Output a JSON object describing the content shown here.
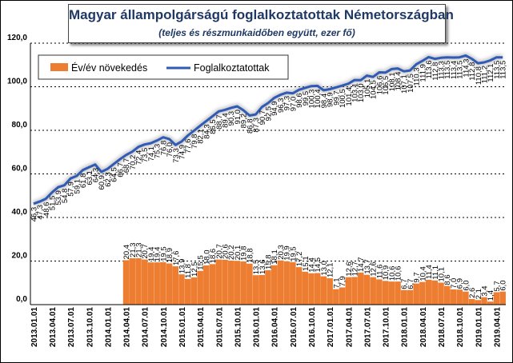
{
  "chart_data": {
    "type": "bar",
    "title": "Magyar állampolgárságú foglalkoztatottak Németországban",
    "subtitle": "(teljes és részmunkaidőben együtt, ezer fő)",
    "ylim": [
      0,
      120
    ],
    "yticks": [
      "0,0",
      "20,0",
      "40,0",
      "60,0",
      "80,0",
      "100,0",
      "120,0"
    ],
    "legend_position": "top-left",
    "colors": {
      "bar": "#ed7d31",
      "line": "#2f5bb7"
    },
    "categories": [
      "2013.01",
      "2013.02",
      "2013.03",
      "2013.04",
      "2013.05",
      "2013.06",
      "2013.07",
      "2013.08",
      "2013.09",
      "2013.10",
      "2013.11",
      "2013.12",
      "2014.01",
      "2014.02",
      "2014.03",
      "2014.04",
      "2014.05",
      "2014.06",
      "2014.07",
      "2014.08",
      "2014.09",
      "2014.10",
      "2014.11",
      "2014.12",
      "2015.01",
      "2015.02",
      "2015.03",
      "2015.04",
      "2015.05",
      "2015.06",
      "2015.07",
      "2015.08",
      "2015.09",
      "2015.10",
      "2015.11",
      "2015.12",
      "2016.01",
      "2016.02",
      "2016.03",
      "2016.04",
      "2016.05",
      "2016.06",
      "2016.07",
      "2016.08",
      "2016.09",
      "2016.10",
      "2016.11",
      "2016.12",
      "2017.01",
      "2017.02",
      "2017.03",
      "2017.04",
      "2017.05",
      "2017.06",
      "2017.07",
      "2017.08",
      "2017.09",
      "2017.10",
      "2017.11",
      "2017.12",
      "2018.01",
      "2018.02",
      "2018.03",
      "2018.04",
      "2018.05",
      "2018.06",
      "2018.07",
      "2018.08",
      "2018.09",
      "2018.10",
      "2018.11",
      "2018.12",
      "2019.01",
      "2019.02",
      "2019.03",
      "2019.04",
      "2019.05"
    ],
    "xtick_labels": [
      "2013.01.01",
      "2013.04.01",
      "2013.07.01",
      "2013.10.01",
      "2014.01.01",
      "2014.04.01",
      "2014.07.01",
      "2014.10.01",
      "2015.01.01",
      "2015.04.01",
      "2015.07.01",
      "2015.10.01",
      "2016.01.01",
      "2016.04.01",
      "2016.07.01",
      "2016.10.01",
      "2017.01.01",
      "2017.04.01",
      "2017.07.01",
      "2017.10.01",
      "2018.01.01",
      "2018.04.01",
      "2018.07.01",
      "2018.10.01",
      "2019.01.01",
      "2019.04.01"
    ],
    "series": [
      {
        "name": "Év/év növekedés",
        "type": "bar",
        "values": [
          null,
          null,
          null,
          null,
          null,
          null,
          null,
          null,
          null,
          null,
          null,
          null,
          null,
          null,
          null,
          20.4,
          21.3,
          21.3,
          20.7,
          19.4,
          19.4,
          19.5,
          18.9,
          17.6,
          13.9,
          11.8,
          12.5,
          15.5,
          18.0,
          18.6,
          20.7,
          20.6,
          20.2,
          20.1,
          19.8,
          18.8,
          13.5,
          13.6,
          15.8,
          18.1,
          20.3,
          19.9,
          19.5,
          17.2,
          15.1,
          14.4,
          14.5,
          13.0,
          12.1,
          7.1,
          7.9,
          12.6,
          12.7,
          14.7,
          13.7,
          12.6,
          11.6,
          10.9,
          10.6,
          10.6,
          6.7,
          6.7,
          9.7,
          10.4,
          11.4,
          11.1,
          10.1,
          8.6,
          7.0,
          6.9,
          6.0,
          2.6,
          2.1,
          3.4,
          1.4,
          5.7,
          6.0
        ]
      },
      {
        "name": "Foglalkoztatottak",
        "type": "line",
        "values": [
          46.3,
          47.3,
          48.6,
          51.5,
          53.9,
          54.8,
          57.9,
          59.1,
          61.8,
          63.1,
          64.3,
          60.9,
          62.3,
          64.5,
          66.7,
          68.7,
          70.2,
          72.4,
          73.5,
          74.1,
          75.3,
          76.8,
          76.0,
          73.3,
          74.9,
          77.6,
          79.8,
          82.1,
          84.3,
          86.5,
          88.7,
          89.4,
          90.3,
          91.0,
          89.2,
          86.8,
          87.3,
          90.7,
          92.5,
          94.9,
          96.3,
          97.3,
          97.0,
          98.6,
          99.5,
          100.3,
          100.4,
          98.4,
          98.9,
          99.7,
          100.5,
          101.4,
          103.1,
          103.0,
          105.1,
          104.5,
          106.6,
          106.5,
          108.1,
          108.4,
          107.1,
          107.5,
          110.3,
          111.9,
          113.6,
          112.8,
          113.3,
          113.5,
          113.4,
          113.5,
          114.3,
          112.8,
          110.8,
          111.2,
          112.1,
          113.5,
          113.5
        ]
      }
    ]
  }
}
